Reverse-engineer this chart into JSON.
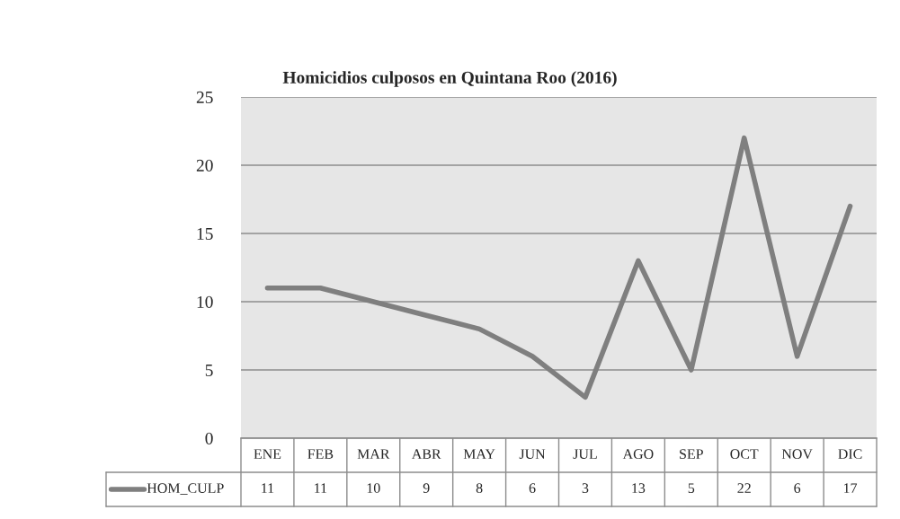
{
  "chart_data": {
    "type": "line",
    "title": "Homicidios culposos en Quintana Roo (2016)",
    "categories": [
      "ENE",
      "FEB",
      "MAR",
      "ABR",
      "MAY",
      "JUN",
      "JUL",
      "AGO",
      "SEP",
      "OCT",
      "NOV",
      "DIC"
    ],
    "series": [
      {
        "name": "HOM_CULP",
        "color": "#7f7f7f",
        "values": [
          11,
          11,
          10,
          9,
          8,
          6,
          3,
          13,
          5,
          22,
          6,
          17
        ]
      }
    ],
    "ylim": [
      0,
      25
    ],
    "yticks": [
      0,
      5,
      10,
      15,
      20,
      25
    ],
    "grid": "y",
    "data_labels": true
  }
}
